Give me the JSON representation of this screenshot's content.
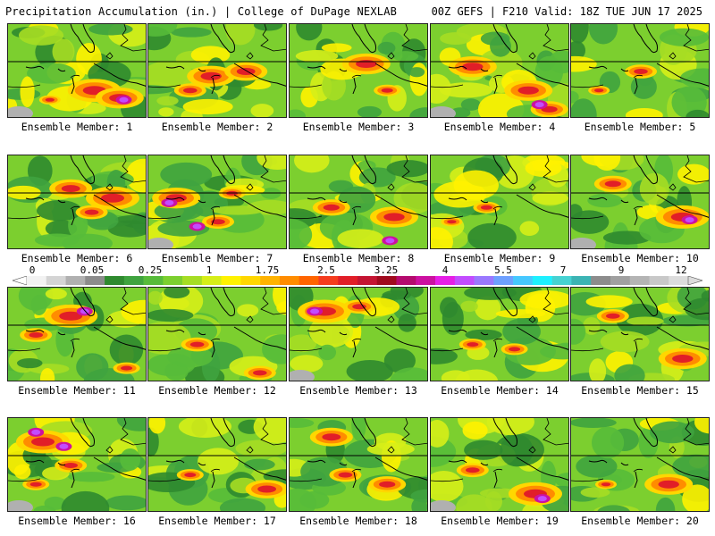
{
  "header": {
    "left_title": "Precipitation Accumulation (in.) | College of DuPage NEXLAB",
    "right_title": "00Z GEFS | F210 Valid: 18Z TUE JUN 17 2025"
  },
  "colorbar": {
    "tick_labels": [
      "0",
      "0.05",
      "0.25",
      "1",
      "1.75",
      "2.5",
      "3.25",
      "4",
      "5.5",
      "7",
      "9",
      "12"
    ],
    "colors": [
      "#f2f2f2",
      "#d4d4d4",
      "#b0b0b0",
      "#8c8c8c",
      "#2f8a2f",
      "#3fa33f",
      "#57bb3a",
      "#7ccf2f",
      "#a6dd24",
      "#d6ee18",
      "#fff200",
      "#ffd700",
      "#ffb300",
      "#ff8c00",
      "#ff6400",
      "#f53c1e",
      "#e11e28",
      "#c41432",
      "#a00a1e",
      "#b40a6e",
      "#cc10a0",
      "#e61ee6",
      "#c24cff",
      "#9a78ff",
      "#6ea0ff",
      "#46c8ff",
      "#1ef0ff",
      "#46d2d2",
      "#3cb4b4",
      "#8c8c8c",
      "#a0a0a0",
      "#b4b4b4",
      "#c8c8c8",
      "#dcdcdc"
    ]
  },
  "panels": [
    {
      "label": "Ensemble Member: 1",
      "hot": [
        [
          0.62,
          0.7,
          1.0
        ],
        [
          0.8,
          0.78,
          0.9
        ],
        [
          0.3,
          0.8,
          0.4
        ]
      ],
      "extreme": [
        [
          0.83,
          0.8
        ]
      ]
    },
    {
      "label": "Ensemble Member: 2",
      "hot": [
        [
          0.45,
          0.55,
          0.9
        ],
        [
          0.7,
          0.5,
          0.8
        ],
        [
          0.3,
          0.7,
          0.6
        ]
      ],
      "extreme": []
    },
    {
      "label": "Ensemble Member: 3",
      "hot": [
        [
          0.55,
          0.42,
          0.9
        ],
        [
          0.7,
          0.7,
          0.5
        ]
      ],
      "extreme": []
    },
    {
      "label": "Ensemble Member: 4",
      "hot": [
        [
          0.3,
          0.45,
          0.9
        ],
        [
          0.7,
          0.7,
          0.9
        ],
        [
          0.85,
          0.9,
          0.7
        ]
      ],
      "extreme": [
        [
          0.78,
          0.85
        ]
      ]
    },
    {
      "label": "Ensemble Member: 5",
      "hot": [
        [
          0.5,
          0.5,
          0.6
        ],
        [
          0.2,
          0.7,
          0.4
        ]
      ],
      "extreme": []
    },
    {
      "label": "Ensemble Member: 6",
      "hot": [
        [
          0.45,
          0.35,
          0.8
        ],
        [
          0.75,
          0.45,
          1.0
        ],
        [
          0.6,
          0.6,
          0.6
        ]
      ],
      "extreme": []
    },
    {
      "label": "Ensemble Member: 7",
      "hot": [
        [
          0.2,
          0.45,
          0.9
        ],
        [
          0.5,
          0.7,
          0.6
        ],
        [
          0.6,
          0.4,
          0.5
        ]
      ],
      "extreme": [
        [
          0.15,
          0.5
        ],
        [
          0.35,
          0.75
        ]
      ]
    },
    {
      "label": "Ensemble Member: 8",
      "hot": [
        [
          0.3,
          0.55,
          0.7
        ],
        [
          0.75,
          0.65,
          0.9
        ]
      ],
      "extreme": [
        [
          0.72,
          0.9
        ]
      ]
    },
    {
      "label": "Ensemble Member: 9",
      "hot": [
        [
          0.4,
          0.55,
          0.5
        ],
        [
          0.15,
          0.7,
          0.4
        ]
      ],
      "extreme": []
    },
    {
      "label": "Ensemble Member: 10",
      "hot": [
        [
          0.3,
          0.3,
          0.7
        ],
        [
          0.8,
          0.65,
          1.0
        ]
      ],
      "extreme": [
        [
          0.85,
          0.68
        ]
      ]
    },
    {
      "label": "Ensemble Member: 11",
      "hot": [
        [
          0.45,
          0.3,
          1.0
        ],
        [
          0.2,
          0.5,
          0.6
        ],
        [
          0.85,
          0.85,
          0.5
        ]
      ],
      "extreme": [
        [
          0.55,
          0.25
        ]
      ]
    },
    {
      "label": "Ensemble Member: 12",
      "hot": [
        [
          0.35,
          0.6,
          0.6
        ],
        [
          0.8,
          0.9,
          0.6
        ]
      ],
      "extreme": []
    },
    {
      "label": "Ensemble Member: 13",
      "hot": [
        [
          0.25,
          0.25,
          1.0
        ],
        [
          0.5,
          0.2,
          0.6
        ]
      ],
      "extreme": [
        [
          0.18,
          0.25
        ]
      ]
    },
    {
      "label": "Ensemble Member: 14",
      "hot": [
        [
          0.3,
          0.6,
          0.5
        ],
        [
          0.6,
          0.65,
          0.5
        ]
      ],
      "extreme": []
    },
    {
      "label": "Ensemble Member: 15",
      "hot": [
        [
          0.3,
          0.3,
          0.6
        ],
        [
          0.8,
          0.75,
          0.9
        ]
      ],
      "extreme": []
    },
    {
      "label": "Ensemble Member: 16",
      "hot": [
        [
          0.25,
          0.25,
          1.0
        ],
        [
          0.45,
          0.5,
          0.6
        ],
        [
          0.2,
          0.7,
          0.5
        ]
      ],
      "extreme": [
        [
          0.2,
          0.15
        ],
        [
          0.4,
          0.3
        ]
      ]
    },
    {
      "label": "Ensemble Member: 17",
      "hot": [
        [
          0.3,
          0.6,
          0.5
        ],
        [
          0.85,
          0.75,
          0.8
        ]
      ],
      "extreme": []
    },
    {
      "label": "Ensemble Member: 18",
      "hot": [
        [
          0.3,
          0.2,
          0.8
        ],
        [
          0.4,
          0.6,
          0.6
        ],
        [
          0.7,
          0.7,
          0.7
        ]
      ],
      "extreme": []
    },
    {
      "label": "Ensemble Member: 19",
      "hot": [
        [
          0.3,
          0.55,
          0.6
        ],
        [
          0.75,
          0.8,
          1.0
        ]
      ],
      "extreme": [
        [
          0.8,
          0.85
        ]
      ]
    },
    {
      "label": "Ensemble Member: 20",
      "hot": [
        [
          0.7,
          0.7,
          0.9
        ],
        [
          0.25,
          0.7,
          0.4
        ]
      ],
      "extreme": []
    }
  ]
}
